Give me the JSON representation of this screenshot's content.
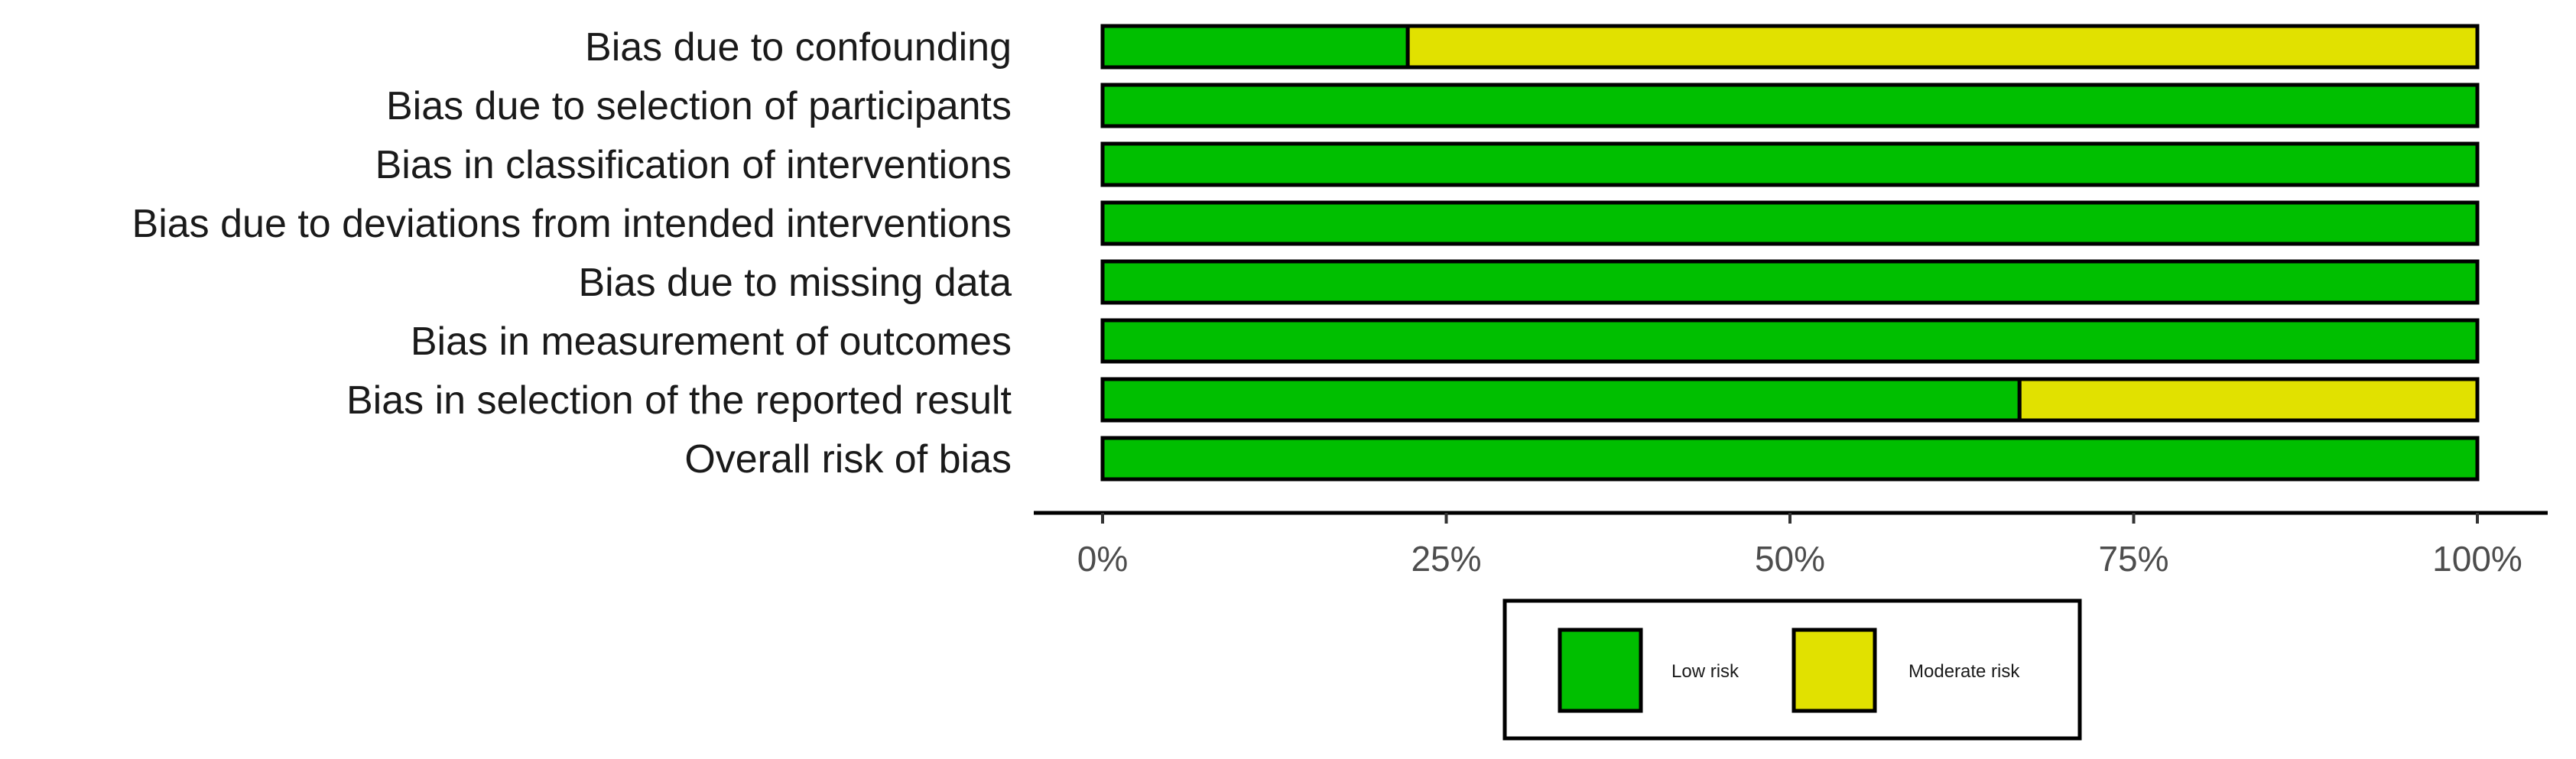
{
  "chart_data": {
    "type": "bar",
    "orientation": "horizontal",
    "stacked": true,
    "categories": [
      "Bias due to confounding",
      "Bias due to selection of participants",
      "Bias in classification of interventions",
      "Bias due to deviations from intended interventions",
      "Bias due to missing data",
      "Bias in measurement of outcomes",
      "Bias in selection of the reported result",
      "Overall risk of bias"
    ],
    "series": [
      {
        "name": "Low risk",
        "color": "#00bf00",
        "values": [
          22.2,
          100,
          100,
          100,
          100,
          100,
          66.7,
          100
        ]
      },
      {
        "name": "Moderate risk",
        "color": "#e1e100",
        "values": [
          77.8,
          0,
          0,
          0,
          0,
          0,
          33.3,
          0
        ]
      }
    ],
    "xlim": [
      0,
      100
    ],
    "x_ticks": [
      0,
      25,
      50,
      75,
      100
    ],
    "x_tick_labels": [
      "0%",
      "25%",
      "50%",
      "75%",
      "100%"
    ],
    "grid": false,
    "legend_position": "bottom"
  }
}
